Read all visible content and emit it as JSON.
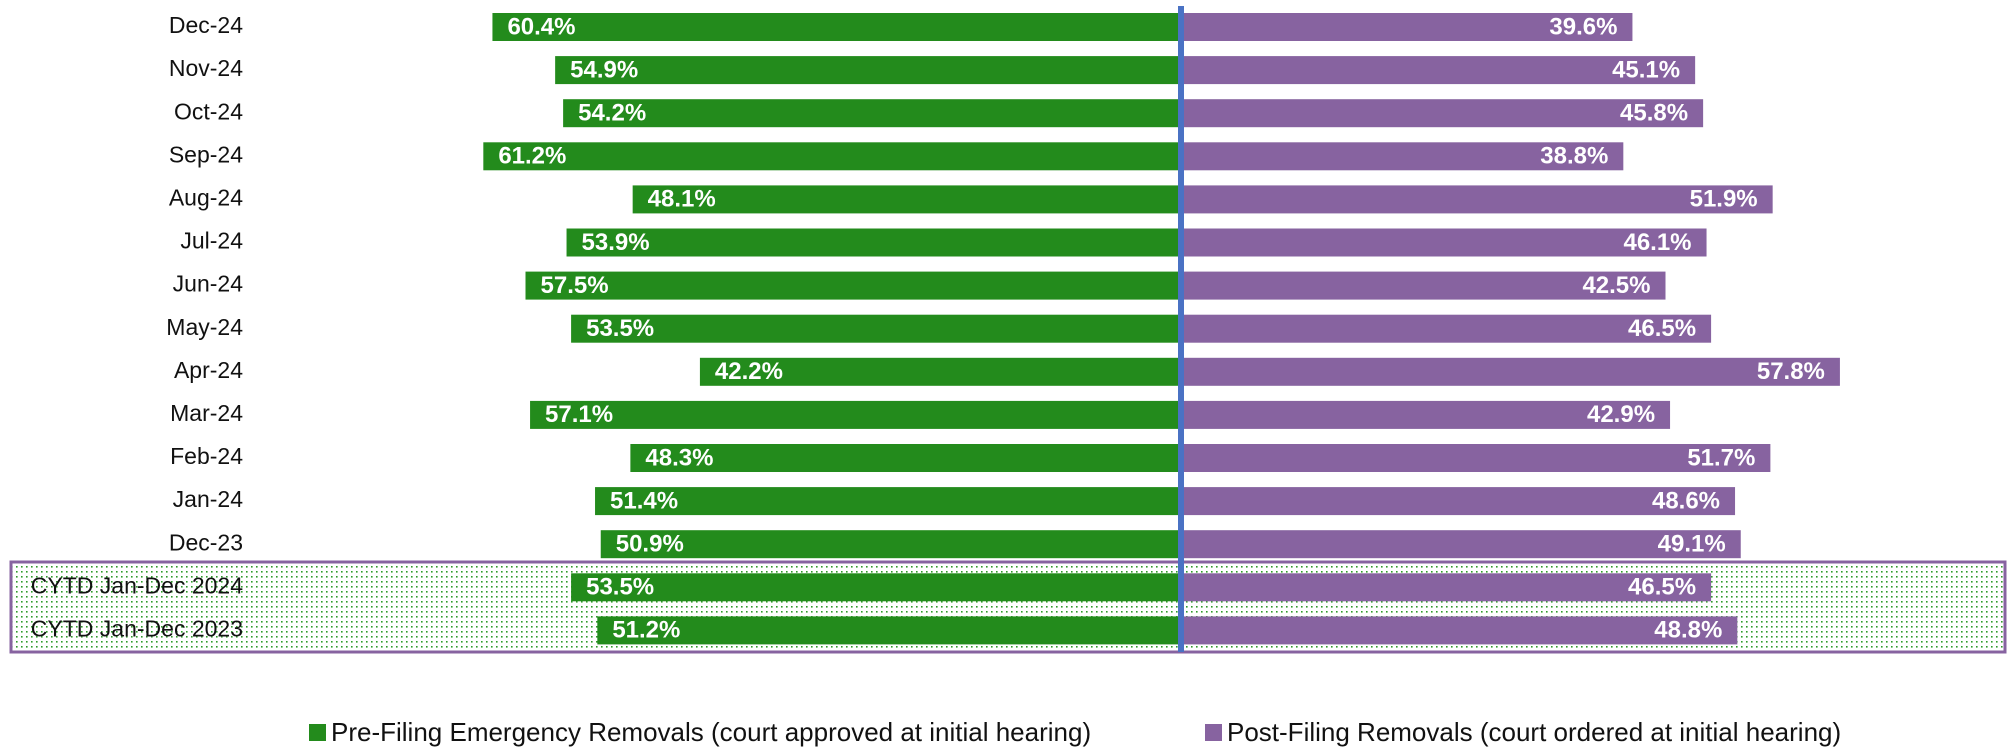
{
  "chart_data": {
    "type": "diverging-bar",
    "categories": [
      "Dec-24",
      "Nov-24",
      "Oct-24",
      "Sep-24",
      "Aug-24",
      "Jul-24",
      "Jun-24",
      "May-24",
      "Apr-24",
      "Mar-24",
      "Feb-24",
      "Jan-24",
      "Dec-23",
      "CYTD Jan-Dec 2024",
      "CYTD Jan-Dec 2023"
    ],
    "series": [
      {
        "name": "Pre-Filing Emergency Removals (court approved at initial hearing)",
        "color": "#238b1c",
        "values": [
          60.4,
          54.9,
          54.2,
          61.2,
          48.1,
          53.9,
          57.5,
          53.5,
          42.2,
          57.1,
          48.3,
          51.4,
          50.9,
          53.5,
          51.2
        ],
        "value_labels": [
          "60.4%",
          "54.9%",
          "54.2%",
          "61.2%",
          "48.1%",
          "53.9%",
          "57.5%",
          "53.5%",
          "42.2%",
          "57.1%",
          "48.3%",
          "51.4%",
          "50.9%",
          "53.5%",
          "51.2%"
        ]
      },
      {
        "name": "Post-Filing Removals (court ordered at initial hearing)",
        "color": "#8763a0",
        "values": [
          39.6,
          45.1,
          45.8,
          38.8,
          51.9,
          46.1,
          42.5,
          46.5,
          57.8,
          42.9,
          51.7,
          48.6,
          49.1,
          46.5,
          48.8
        ],
        "value_labels": [
          "39.6%",
          "45.1%",
          "45.8%",
          "38.8%",
          "51.9%",
          "46.1%",
          "42.5%",
          "46.5%",
          "57.8%",
          "42.9%",
          "51.7%",
          "48.6%",
          "49.1%",
          "46.5%",
          "48.8%"
        ]
      }
    ]
  }
}
